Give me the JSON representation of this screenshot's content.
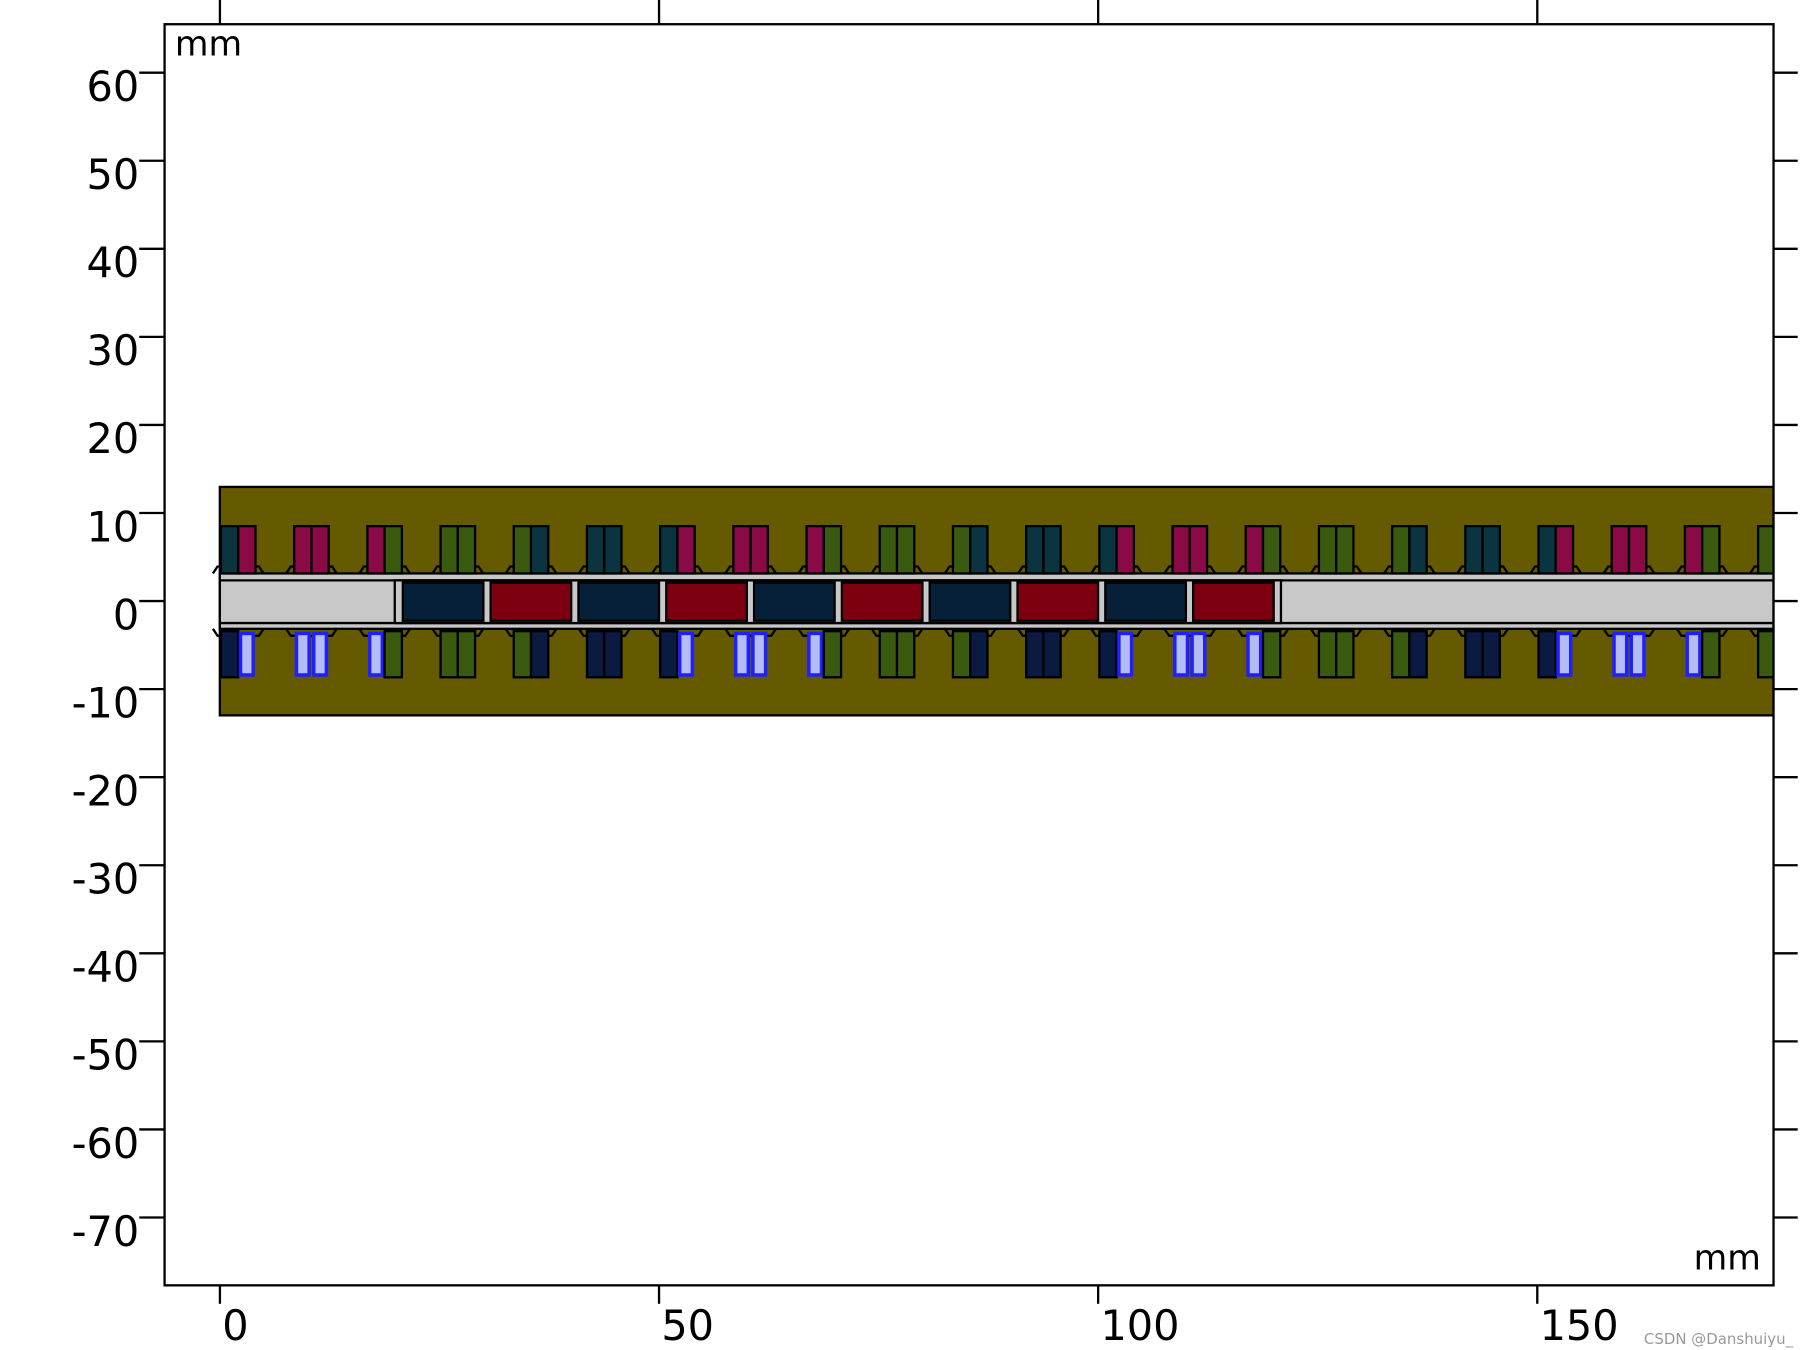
{
  "chart_data": {
    "type": "geometry",
    "x_label": "mm",
    "y_label": "mm",
    "xlim": [
      -6.3,
      176.9
    ],
    "ylim": [
      -77.7,
      65.5
    ],
    "xticks": [
      0,
      50,
      100,
      150
    ],
    "yticks": [
      -70,
      -60,
      -50,
      -40,
      -30,
      -20,
      -10,
      0,
      10,
      20,
      30,
      40,
      50,
      60
    ]
  },
  "watermark": "CSDN @Danshuiyu_"
}
